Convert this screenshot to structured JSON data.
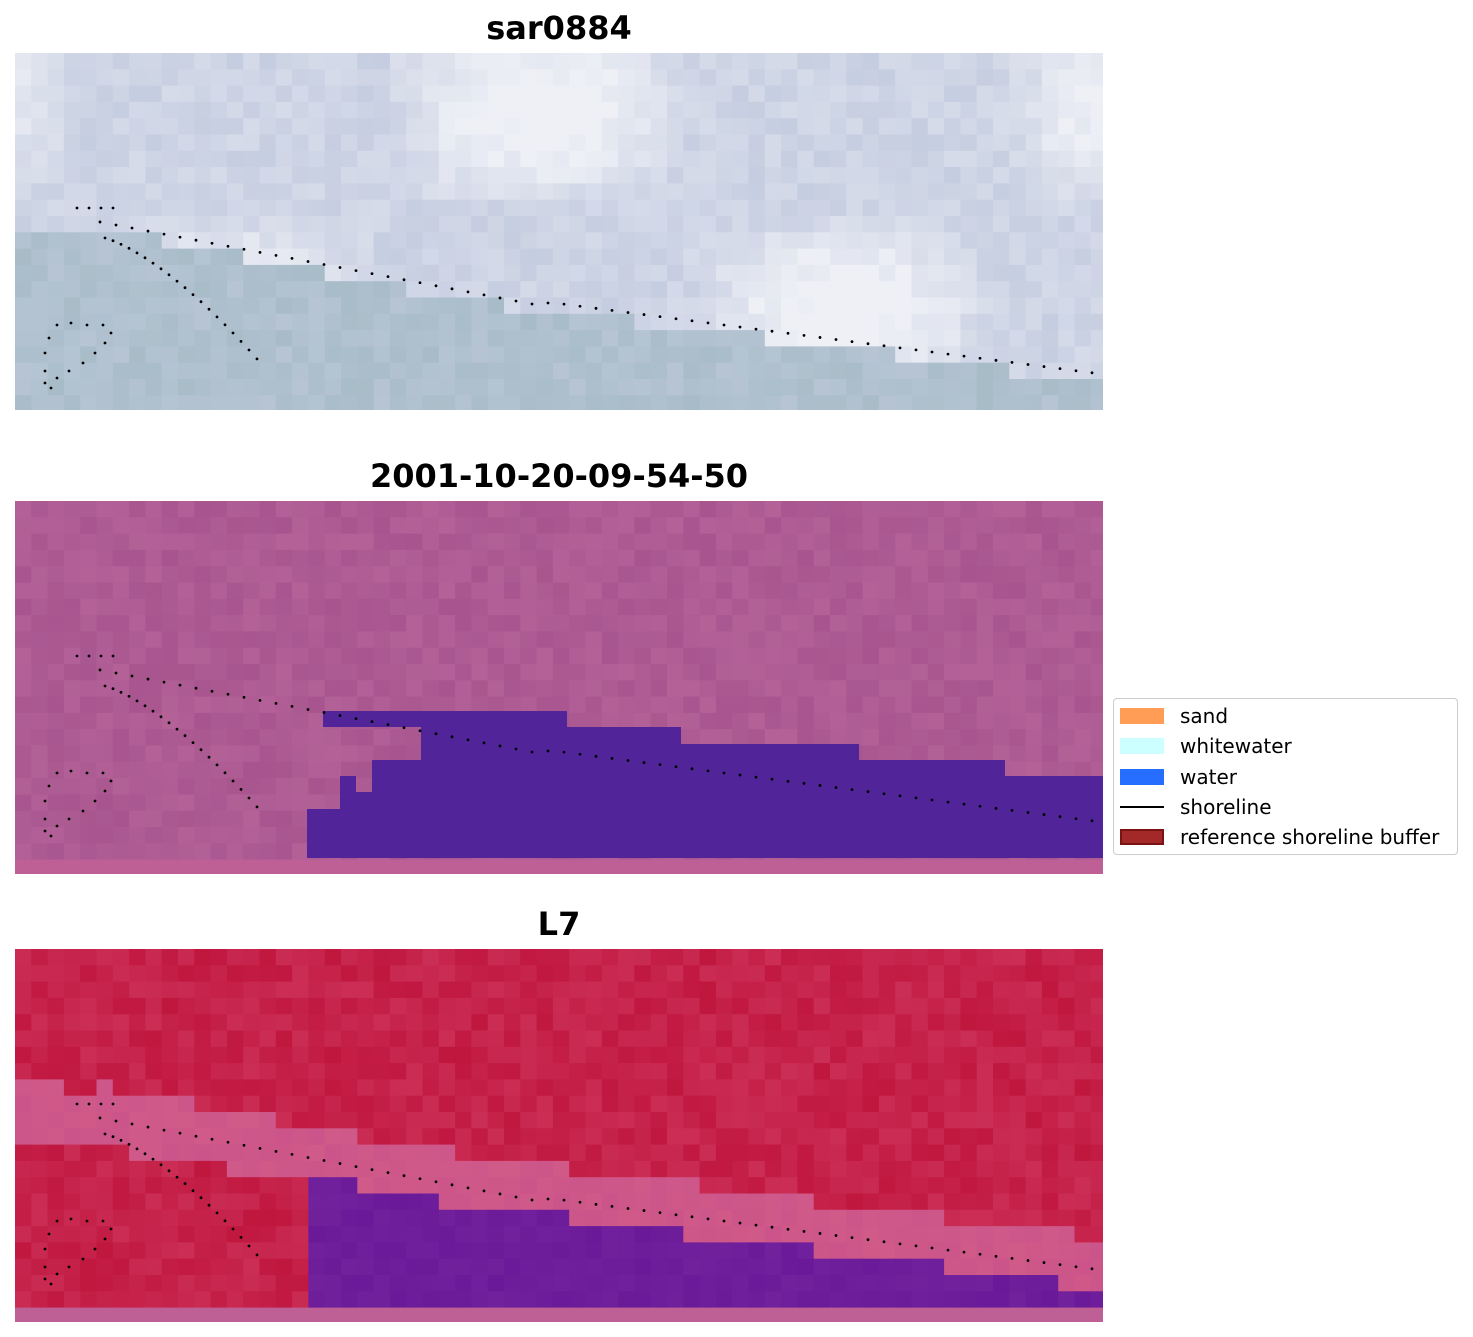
{
  "panels": [
    {
      "title": "sar0884",
      "style": "rgb"
    },
    {
      "title": "2001-10-20-09-54-50",
      "style": "classified"
    },
    {
      "title": "L7",
      "style": "falsecolor"
    }
  ],
  "legend": {
    "items": [
      {
        "label": "sand",
        "color": "#ff8c3a",
        "kind": "patch"
      },
      {
        "label": "whitewater",
        "color": "#ccffff",
        "kind": "patch"
      },
      {
        "label": "water",
        "color": "#0055ff",
        "kind": "patch"
      },
      {
        "label": "shoreline",
        "color": "#000000",
        "kind": "line"
      },
      {
        "label": "reference shoreline buffer",
        "color": "#a32828",
        "kind": "patch"
      }
    ]
  },
  "colors": {
    "rgb_light": "#eef0f6",
    "rgb_mid": "#c5cde0",
    "rgb_water": "#a8bcc8",
    "classified_bg": "#a8558f",
    "classified_water": "#52249a",
    "false_red": "#c0173f",
    "false_pink": "#d05a88",
    "false_purple": "#6a1a98"
  }
}
